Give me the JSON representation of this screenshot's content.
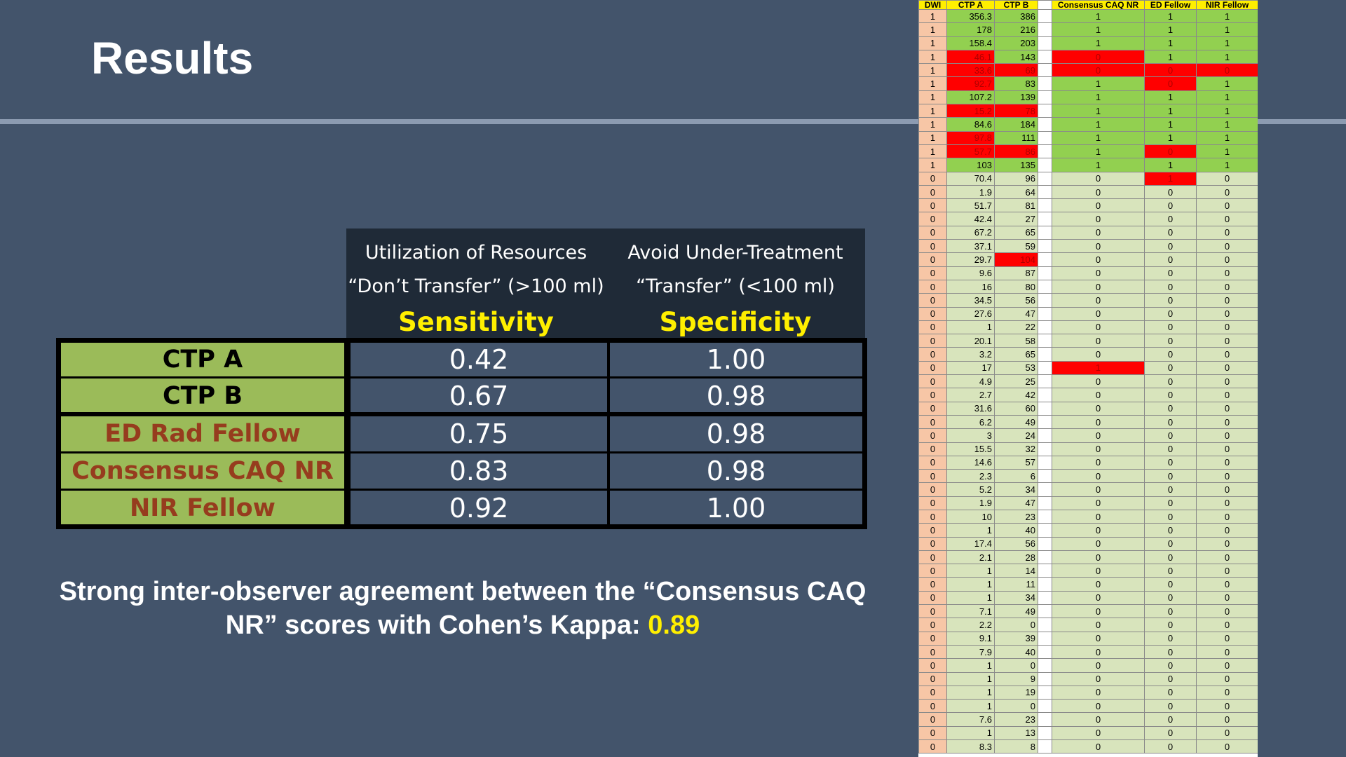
{
  "title": "Results",
  "header": {
    "col1": {
      "line1": "Utilization of Resources",
      "line2": "“Don’t Transfer” (>100 ml)",
      "metric": "Sensitivity"
    },
    "col2": {
      "line1": "Avoid Under-Treatment",
      "line2": "“Transfer” (<100 ml)",
      "metric": "Specificity"
    }
  },
  "rows": [
    {
      "label": "CTP A",
      "sensitivity": "0.42",
      "specificity": "1.00",
      "color": "#000000"
    },
    {
      "label": "CTP B",
      "sensitivity": "0.67",
      "specificity": "0.98",
      "color": "#000000"
    },
    {
      "label": "ED Rad Fellow",
      "sensitivity": "0.75",
      "specificity": "0.98",
      "color": "#963c1e"
    },
    {
      "label": "Consensus CAQ NR",
      "sensitivity": "0.83",
      "specificity": "0.98",
      "color": "#963c1e"
    },
    {
      "label": "NIR Fellow",
      "sensitivity": "0.92",
      "specificity": "1.00",
      "color": "#963c1e"
    }
  ],
  "summary": {
    "text": "Strong inter-observer agreement between the “Consensus CAQ NR” scores with Cohen’s Kappa:",
    "kappa": "0.89"
  },
  "sheet": {
    "headers": [
      "DWI",
      "CTP A",
      "CTP B",
      "",
      "Consensus CAQ NR",
      "ED Fellow",
      "NIR Fellow"
    ],
    "rows": [
      [
        "1",
        "356.3",
        "386",
        "1",
        "1",
        "1"
      ],
      [
        "1",
        "178",
        "216",
        "1",
        "1",
        "1"
      ],
      [
        "1",
        "158.4",
        "203",
        "1",
        "1",
        "1"
      ],
      [
        "1",
        "46.1",
        "143",
        "0",
        "1",
        "1"
      ],
      [
        "1",
        "33.6",
        "69",
        "0",
        "0",
        "0"
      ],
      [
        "1",
        "92.7",
        "83",
        "1",
        "0",
        "1"
      ],
      [
        "1",
        "107.2",
        "139",
        "1",
        "1",
        "1"
      ],
      [
        "1",
        "15.2",
        "78",
        "1",
        "1",
        "1"
      ],
      [
        "1",
        "84.6",
        "184",
        "1",
        "1",
        "1"
      ],
      [
        "1",
        "97.8",
        "111",
        "1",
        "1",
        "1"
      ],
      [
        "1",
        "57.7",
        "86",
        "1",
        "0",
        "1"
      ],
      [
        "1",
        "103",
        "135",
        "1",
        "1",
        "1"
      ],
      [
        "0",
        "70.4",
        "96",
        "0",
        "1",
        "0"
      ],
      [
        "0",
        "1.9",
        "64",
        "0",
        "0",
        "0"
      ],
      [
        "0",
        "51.7",
        "81",
        "0",
        "0",
        "0"
      ],
      [
        "0",
        "42.4",
        "27",
        "0",
        "0",
        "0"
      ],
      [
        "0",
        "67.2",
        "65",
        "0",
        "0",
        "0"
      ],
      [
        "0",
        "37.1",
        "59",
        "0",
        "0",
        "0"
      ],
      [
        "0",
        "29.7",
        "104",
        "0",
        "0",
        "0"
      ],
      [
        "0",
        "9.6",
        "87",
        "0",
        "0",
        "0"
      ],
      [
        "0",
        "16",
        "80",
        "0",
        "0",
        "0"
      ],
      [
        "0",
        "34.5",
        "56",
        "0",
        "0",
        "0"
      ],
      [
        "0",
        "27.6",
        "47",
        "0",
        "0",
        "0"
      ],
      [
        "0",
        "1",
        "22",
        "0",
        "0",
        "0"
      ],
      [
        "0",
        "20.1",
        "58",
        "0",
        "0",
        "0"
      ],
      [
        "0",
        "3.2",
        "65",
        "0",
        "0",
        "0"
      ],
      [
        "0",
        "17",
        "53",
        "1",
        "0",
        "0"
      ],
      [
        "0",
        "4.9",
        "25",
        "0",
        "0",
        "0"
      ],
      [
        "0",
        "2.7",
        "42",
        "0",
        "0",
        "0"
      ],
      [
        "0",
        "31.6",
        "60",
        "0",
        "0",
        "0"
      ],
      [
        "0",
        "6.2",
        "49",
        "0",
        "0",
        "0"
      ],
      [
        "0",
        "3",
        "24",
        "0",
        "0",
        "0"
      ],
      [
        "0",
        "15.5",
        "32",
        "0",
        "0",
        "0"
      ],
      [
        "0",
        "14.6",
        "57",
        "0",
        "0",
        "0"
      ],
      [
        "0",
        "2.3",
        "6",
        "0",
        "0",
        "0"
      ],
      [
        "0",
        "5.2",
        "34",
        "0",
        "0",
        "0"
      ],
      [
        "0",
        "1.9",
        "47",
        "0",
        "0",
        "0"
      ],
      [
        "0",
        "10",
        "23",
        "0",
        "0",
        "0"
      ],
      [
        "0",
        "1",
        "40",
        "0",
        "0",
        "0"
      ],
      [
        "0",
        "17.4",
        "56",
        "0",
        "0",
        "0"
      ],
      [
        "0",
        "2.1",
        "28",
        "0",
        "0",
        "0"
      ],
      [
        "0",
        "1",
        "14",
        "0",
        "0",
        "0"
      ],
      [
        "0",
        "1",
        "11",
        "0",
        "0",
        "0"
      ],
      [
        "0",
        "1",
        "34",
        "0",
        "0",
        "0"
      ],
      [
        "0",
        "7.1",
        "49",
        "0",
        "0",
        "0"
      ],
      [
        "0",
        "2.2",
        "0",
        "0",
        "0",
        "0"
      ],
      [
        "0",
        "9.1",
        "39",
        "0",
        "0",
        "0"
      ],
      [
        "0",
        "7.9",
        "40",
        "0",
        "0",
        "0"
      ],
      [
        "0",
        "1",
        "0",
        "0",
        "0",
        "0"
      ],
      [
        "0",
        "1",
        "9",
        "0",
        "0",
        "0"
      ],
      [
        "0",
        "1",
        "19",
        "0",
        "0",
        "0"
      ],
      [
        "0",
        "1",
        "0",
        "0",
        "0",
        "0"
      ],
      [
        "0",
        "7.6",
        "23",
        "0",
        "0",
        "0"
      ],
      [
        "0",
        "1",
        "13",
        "0",
        "0",
        "0"
      ],
      [
        "0",
        "8.3",
        "8",
        "0",
        "0",
        "0"
      ]
    ],
    "red_cells": [
      [
        3,
        1
      ],
      [
        4,
        1
      ],
      [
        4,
        2
      ],
      [
        5,
        1
      ],
      [
        7,
        1
      ],
      [
        7,
        2
      ],
      [
        9,
        1
      ],
      [
        10,
        1
      ],
      [
        10,
        2
      ],
      [
        3,
        3
      ],
      [
        4,
        3
      ],
      [
        26,
        3
      ],
      [
        4,
        4
      ],
      [
        5,
        4
      ],
      [
        10,
        4
      ],
      [
        12,
        4
      ],
      [
        4,
        5
      ],
      [
        18,
        2
      ]
    ],
    "colors": {
      "positive": "#92d050",
      "negative": "#d8e4bc",
      "error": "#ff0000",
      "dwi": "#f7c6a6",
      "header": "#ffef00"
    }
  }
}
